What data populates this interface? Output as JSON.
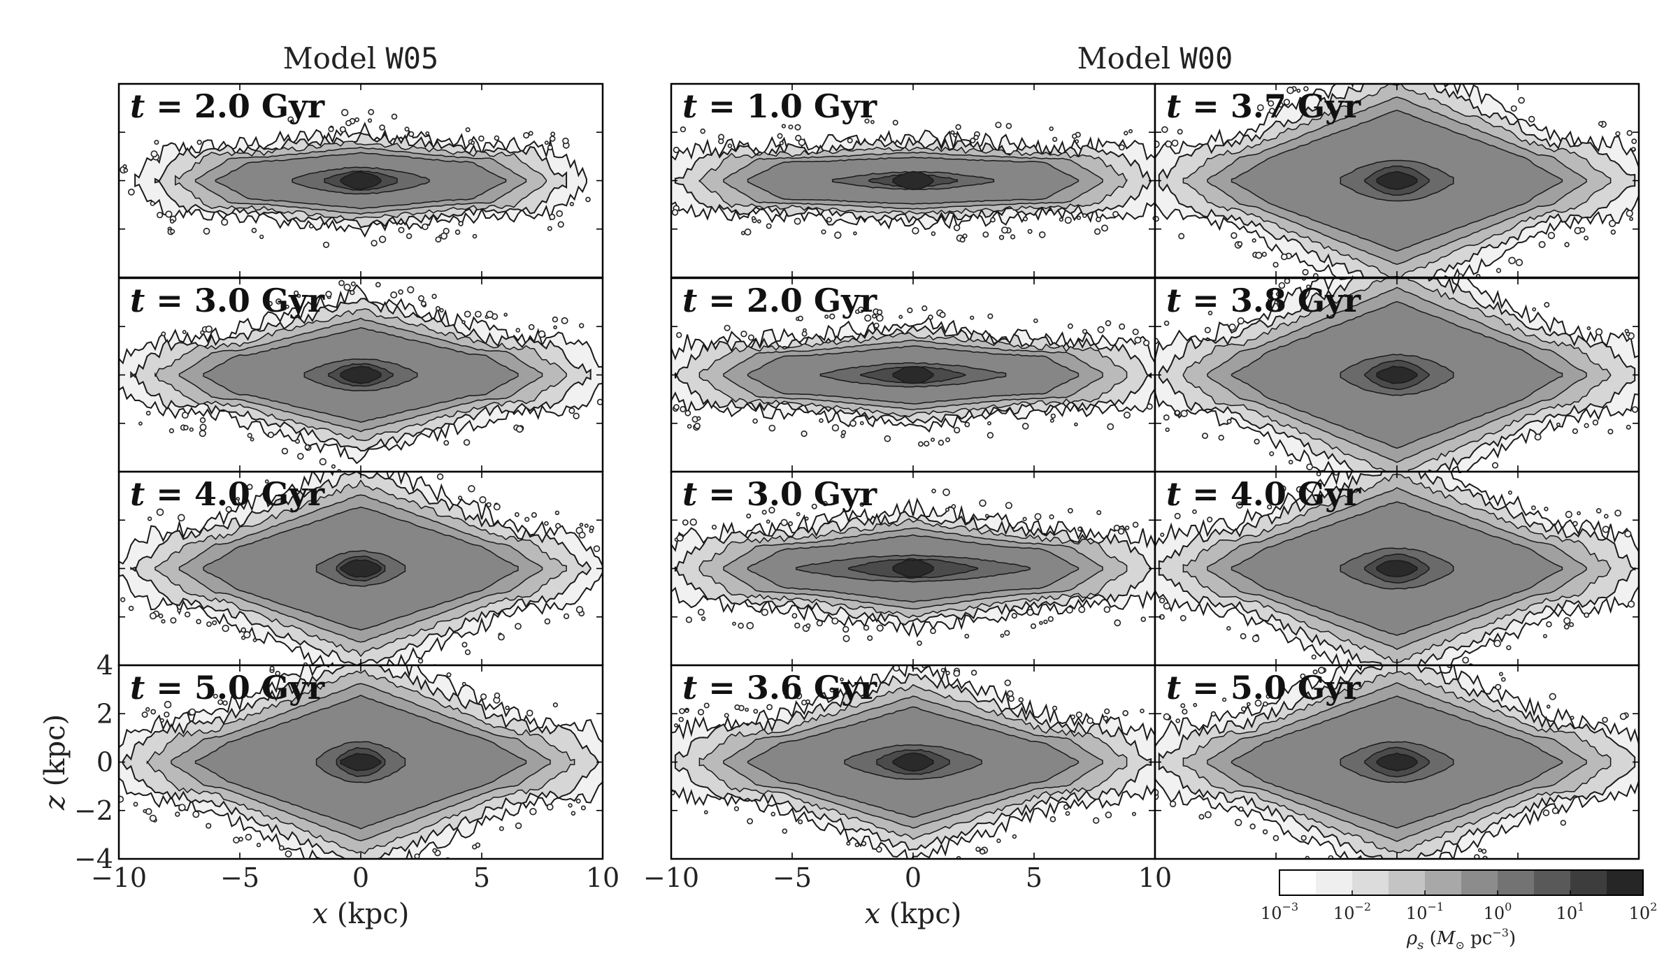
{
  "chart_data": {
    "type": "heatmap",
    "description_values": {
      "group_titles": [
        {
          "prefix": "Model ",
          "code": "W05"
        },
        {
          "prefix": "Model ",
          "code": "W00"
        }
      ],
      "panels": [
        {
          "id": "w05-t2",
          "model": "W05",
          "time_label": "t = 2.0 Gyr",
          "time_gyr": 2.0,
          "col": 0,
          "row": 0,
          "shape": {
            "disk_halfwidth": 8.0,
            "core_halfwidth": 3.0,
            "core_halfheight": 0.45,
            "flare_halfheight": 0.5,
            "bulge": 0.3
          }
        },
        {
          "id": "w05-t3",
          "model": "W05",
          "time_label": "t = 3.0 Gyr",
          "time_gyr": 3.0,
          "col": 0,
          "row": 1,
          "shape": {
            "disk_halfwidth": 9.0,
            "core_halfwidth": 2.5,
            "core_halfheight": 0.55,
            "flare_halfheight": 1.0,
            "bulge": 1.2
          }
        },
        {
          "id": "w05-t4",
          "model": "W05",
          "time_label": "t = 4.0 Gyr",
          "time_gyr": 4.0,
          "col": 0,
          "row": 2,
          "shape": {
            "disk_halfwidth": 9.0,
            "core_halfwidth": 2.0,
            "core_halfheight": 0.6,
            "flare_halfheight": 1.5,
            "bulge": 1.8
          }
        },
        {
          "id": "w05-t5",
          "model": "W05",
          "time_label": "t = 5.0 Gyr",
          "time_gyr": 5.0,
          "col": 0,
          "row": 3,
          "shape": {
            "disk_halfwidth": 9.5,
            "core_halfwidth": 2.0,
            "core_halfheight": 0.7,
            "flare_halfheight": 1.6,
            "bulge": 2.0
          }
        },
        {
          "id": "w00-t1",
          "model": "W00",
          "time_label": "t = 1.0 Gyr",
          "time_gyr": 1.0,
          "col": 1,
          "row": 0,
          "shape": {
            "disk_halfwidth": 9.5,
            "core_halfwidth": 3.5,
            "core_halfheight": 0.3,
            "flare_halfheight": 0.4,
            "bulge": 0.1
          }
        },
        {
          "id": "w00-t2",
          "model": "W00",
          "time_label": "t = 2.0 Gyr",
          "time_gyr": 2.0,
          "col": 1,
          "row": 1,
          "shape": {
            "disk_halfwidth": 9.5,
            "core_halfwidth": 4.0,
            "core_halfheight": 0.4,
            "flare_halfheight": 0.6,
            "bulge": 0.3
          }
        },
        {
          "id": "w00-t3",
          "model": "W00",
          "time_label": "t = 3.0 Gyr",
          "time_gyr": 3.0,
          "col": 1,
          "row": 2,
          "shape": {
            "disk_halfwidth": 9.5,
            "core_halfwidth": 5.0,
            "core_halfheight": 0.45,
            "flare_halfheight": 0.9,
            "bulge": 0.4
          }
        },
        {
          "id": "w00-t36",
          "model": "W00",
          "time_label": "t = 3.6 Gyr",
          "time_gyr": 3.6,
          "col": 1,
          "row": 3,
          "shape": {
            "disk_halfwidth": 9.5,
            "core_halfwidth": 3.0,
            "core_halfheight": 0.6,
            "flare_halfheight": 1.3,
            "bulge": 1.5
          }
        },
        {
          "id": "w00-t37",
          "model": "W00",
          "time_label": "t = 3.7 Gyr",
          "time_gyr": 3.7,
          "col": 2,
          "row": 0,
          "shape": {
            "disk_halfwidth": 9.5,
            "core_halfwidth": 2.5,
            "core_halfheight": 0.7,
            "flare_halfheight": 1.7,
            "bulge": 2.2
          }
        },
        {
          "id": "w00-t38",
          "model": "W00",
          "time_label": "t = 3.8 Gyr",
          "time_gyr": 3.8,
          "col": 2,
          "row": 1,
          "shape": {
            "disk_halfwidth": 9.5,
            "core_halfwidth": 2.5,
            "core_halfheight": 0.7,
            "flare_halfheight": 1.8,
            "bulge": 2.3
          }
        },
        {
          "id": "w00-t4",
          "model": "W00",
          "time_label": "t = 4.0 Gyr",
          "time_gyr": 4.0,
          "col": 2,
          "row": 2,
          "shape": {
            "disk_halfwidth": 9.5,
            "core_halfwidth": 2.5,
            "core_halfheight": 0.7,
            "flare_halfheight": 1.7,
            "bulge": 2.0
          }
        },
        {
          "id": "w00-t5",
          "model": "W00",
          "time_label": "t = 5.0 Gyr",
          "time_gyr": 5.0,
          "col": 2,
          "row": 3,
          "shape": {
            "disk_halfwidth": 9.5,
            "core_halfwidth": 2.5,
            "core_halfheight": 0.7,
            "flare_halfheight": 1.6,
            "bulge": 2.0
          }
        }
      ]
    },
    "xlabel_var": "x",
    "xlabel_unit": " (kpc)",
    "ylabel_var": "z",
    "ylabel_unit": " (kpc)",
    "xlim": [
      -10,
      10
    ],
    "ylim": [
      -4,
      4
    ],
    "xticks": [
      -10,
      -5,
      0,
      5,
      10
    ],
    "xtick_labels": [
      "−10",
      "−5",
      "0",
      "5",
      "10"
    ],
    "yticks": [
      -4,
      -2,
      0,
      2,
      4
    ],
    "ytick_labels": [
      "−4",
      "−2",
      "0",
      "2",
      "4"
    ],
    "colorbar": {
      "label": "ρs (M⊙ pc⁻³)",
      "label_parts": {
        "rho": "ρ",
        "sub": "s",
        "open": " (",
        "m": "M",
        "msub": "⊙",
        "unit": " pc",
        "exp": "−3",
        "close": ")"
      },
      "tick_labels": [
        {
          "base": "10",
          "exp": "−3",
          "value": -3
        },
        {
          "base": "10",
          "exp": "−2",
          "value": -2
        },
        {
          "base": "10",
          "exp": "−1",
          "value": -1
        },
        {
          "base": "10",
          "exp": "0",
          "value": 0
        },
        {
          "base": "10",
          "exp": "1",
          "value": 1
        },
        {
          "base": "10",
          "exp": "2",
          "value": 2
        }
      ],
      "log_levels": [
        -3,
        -2.5,
        -2,
        -1.5,
        -1,
        -0.5,
        0,
        0.5,
        1,
        1.5,
        2
      ],
      "level_colors": [
        "#ffffff",
        "#efefef",
        "#dcdcdc",
        "#c4c4c4",
        "#a8a8a8",
        "#8c8c8c",
        "#737373",
        "#595959",
        "#3d3d3d",
        "#262626",
        "#0a0a0a"
      ]
    }
  }
}
